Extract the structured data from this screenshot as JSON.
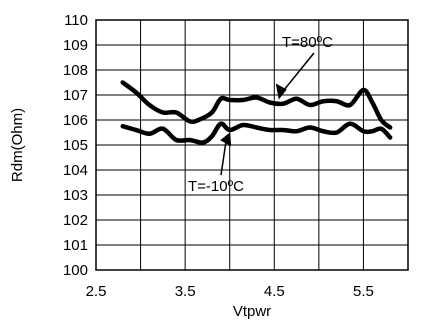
{
  "chart_data": {
    "type": "line",
    "xlabel": "Vtpwr",
    "ylabel": "Rdm(Ohm)",
    "xlim": [
      2.5,
      6.0
    ],
    "ylim": [
      100,
      110
    ],
    "xticks": [
      "2.5",
      "3.5",
      "4.5",
      "5.5"
    ],
    "yticks": [
      "100",
      "101",
      "102",
      "103",
      "104",
      "105",
      "106",
      "107",
      "108",
      "109",
      "110"
    ],
    "grid": true,
    "series": [
      {
        "name": "T=80ºC",
        "color": "#000000",
        "x": [
          2.8,
          2.95,
          3.1,
          3.25,
          3.4,
          3.55,
          3.65,
          3.8,
          3.9,
          4.0,
          4.15,
          4.3,
          4.45,
          4.6,
          4.75,
          4.9,
          5.05,
          5.2,
          5.35,
          5.5,
          5.6,
          5.7,
          5.8
        ],
        "values": [
          107.5,
          107.1,
          106.6,
          106.3,
          106.3,
          105.95,
          106.0,
          106.3,
          106.85,
          106.8,
          106.8,
          106.9,
          106.7,
          106.65,
          106.85,
          106.6,
          106.75,
          106.75,
          106.6,
          107.2,
          106.7,
          106.0,
          105.7
        ]
      },
      {
        "name": "T=-10ºC",
        "color": "#000000",
        "x": [
          2.8,
          2.95,
          3.1,
          3.25,
          3.4,
          3.55,
          3.7,
          3.8,
          3.9,
          4.0,
          4.15,
          4.3,
          4.45,
          4.6,
          4.75,
          4.9,
          5.05,
          5.2,
          5.35,
          5.5,
          5.6,
          5.7,
          5.8
        ],
        "values": [
          105.75,
          105.6,
          105.45,
          105.65,
          105.2,
          105.2,
          105.1,
          105.35,
          105.85,
          105.6,
          105.8,
          105.7,
          105.6,
          105.6,
          105.55,
          105.7,
          105.55,
          105.5,
          105.85,
          105.55,
          105.55,
          105.65,
          105.3
        ]
      }
    ],
    "annotations": [
      {
        "text": "T=80ºC",
        "target_series": 0,
        "x": 4.55,
        "y": 106.7
      },
      {
        "text": "T=-10ºC",
        "target_series": 1,
        "x": 4.05,
        "y": 105.75
      }
    ]
  }
}
